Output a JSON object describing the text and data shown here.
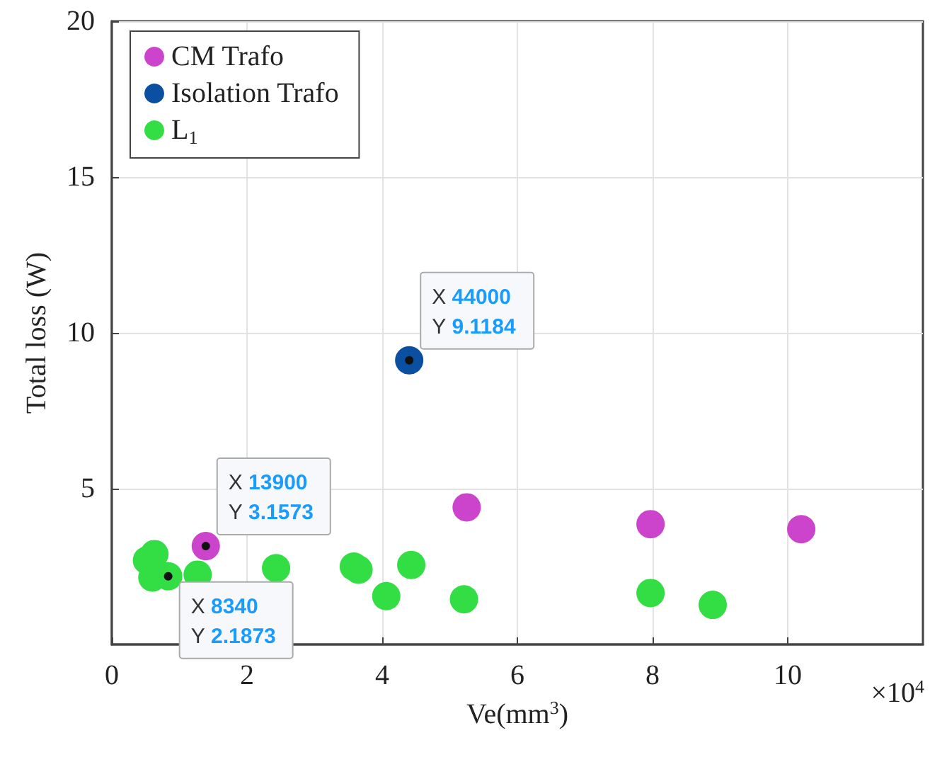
{
  "chart_data": {
    "type": "scatter",
    "xlabel": "Ve(mm$^{3}$)",
    "ylabel": "Total loss (W)",
    "xlim": [
      0,
      12
    ],
    "xticks": [
      0,
      2,
      4,
      6,
      8,
      10
    ],
    "ylim": [
      0,
      20
    ],
    "yticks": [
      5,
      10,
      15,
      20
    ],
    "grid": true,
    "legend": "top left",
    "marker": "circle",
    "series": [
      {
        "name": "CM Trafo",
        "color": "#cc44cc",
        "x": [
          1.39,
          5.25,
          7.97,
          10.2
        ],
        "values": [
          3.1573,
          4.4,
          3.86,
          3.7
        ]
      },
      {
        "name": "Isolation Trafo",
        "color": "#0a4fa0",
        "x": [
          4.4
        ],
        "values": [
          9.1184
        ]
      },
      {
        "name": "L$_{1}$",
        "color": "#33dd44",
        "x": [
          0.63,
          0.52,
          0.6,
          0.834,
          1.27,
          2.43,
          3.58,
          3.65,
          4.43,
          4.06,
          5.21,
          7.97,
          8.89
        ],
        "values": [
          2.9,
          2.7,
          2.15,
          2.1873,
          2.24,
          2.45,
          2.5,
          2.4,
          2.55,
          1.55,
          1.45,
          1.65,
          1.27
        ]
      }
    ],
    "annotations": [
      {
        "text": "X 44000\nY 9.1184",
        "x": 4.4,
        "y": 9.1184
      },
      {
        "text": "X 13900\nY 3.1573",
        "x": 1.39,
        "y": 3.1573
      },
      {
        "text": "X 8340\nY 2.1873",
        "x": 0.834,
        "y": 2.1873
      },
      "×10$^{4}$"
    ]
  }
}
